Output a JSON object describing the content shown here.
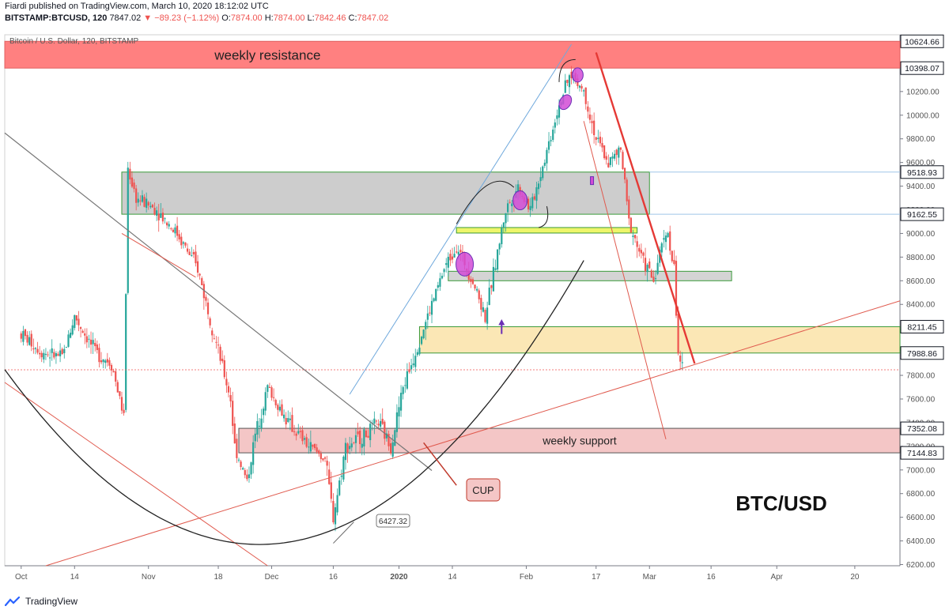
{
  "header": {
    "publisher_line": "Fiardi published on TradingView.com, March 10, 2020 18:12:02 UTC",
    "symbol": "BITSTAMP:BTCUSD, 120",
    "last": "7847.02",
    "change": "−89.23 (−1.12%)",
    "o_label": "O:",
    "o": "7874.00",
    "h_label": "H:",
    "h": "7874.00",
    "l_label": "L:",
    "l": "7842.46",
    "c_label": "C:",
    "c": "7847.02"
  },
  "legend_title": "Bitcoin / U.S. Dollar, 120, BITSTAMP",
  "footer": {
    "brand": "TradingView"
  },
  "colors": {
    "candle_up": "#26a69a",
    "candle_down": "#ef5350",
    "resistance_zone": "#ff8080",
    "support_zone": "#f4c6c6",
    "grey_zone": "#c8c8c8",
    "yellow_band": "#eef56a",
    "orange_zone": "#fbe7b5",
    "red_line": "#e53935",
    "trend_red": "#e05a4e",
    "blue_line": "#6fa8dc",
    "grey_line": "#777777",
    "label_green_bg": "#131722"
  },
  "chart_data": {
    "type": "candlestick",
    "title": "Bitcoin / U.S. Dollar, 120, BITSTAMP",
    "watermark": "BTC/USD",
    "y_axis": {
      "ticks": [
        "6200.00",
        "6400.00",
        "6600.00",
        "6800.00",
        "7000.00",
        "7200.00",
        "7400.00",
        "7600.00",
        "7800.00",
        "8000.00",
        "8200.00",
        "8400.00",
        "8600.00",
        "8800.00",
        "9000.00",
        "9200.00",
        "9400.00",
        "9600.00",
        "9800.00",
        "10000.00",
        "10200.00",
        "10400.00"
      ],
      "tick_values": [
        6200,
        6400,
        6600,
        6800,
        7000,
        7200,
        7400,
        7600,
        7800,
        8000,
        8200,
        8400,
        8600,
        8800,
        9000,
        9200,
        9400,
        9600,
        9800,
        10000,
        10200,
        10400
      ],
      "range": [
        6190,
        10680
      ]
    },
    "price_labels": [
      {
        "text": "10624.66",
        "value": 10624.66
      },
      {
        "text": "10398.07",
        "value": 10398.07
      },
      {
        "text": "9518.93",
        "value": 9518.93
      },
      {
        "text": "9162.55",
        "value": 9162.55
      },
      {
        "text": "8211.45",
        "value": 8211.45
      },
      {
        "text": "7988.86",
        "value": 7988.86
      },
      {
        "text": "7352.08",
        "value": 7352.08
      },
      {
        "text": "7144.83",
        "value": 7144.83
      }
    ],
    "x_axis": {
      "labels": [
        "Oct",
        "14",
        "Nov",
        "18",
        "Dec",
        "16",
        "2020",
        "14",
        "Feb",
        "17",
        "Mar",
        "16",
        "Apr",
        "20"
      ],
      "label_days": [
        0,
        13,
        31,
        48,
        61,
        76,
        92,
        105,
        123,
        140,
        153,
        168,
        184,
        203
      ]
    },
    "annotations": [
      {
        "text": "weekly resistance"
      },
      {
        "text": "weekly support"
      },
      {
        "text": "CUP"
      },
      {
        "text": "6427.32"
      }
    ],
    "zones": [
      {
        "name": "weekly resistance",
        "from": 10398.07,
        "to": 10624.66
      },
      {
        "name": "grey zone",
        "from": 9162.55,
        "to": 9518.93
      },
      {
        "name": "yellow band",
        "from": 9010,
        "to": 9050
      },
      {
        "name": "grey zone low",
        "from": 8600,
        "to": 8680
      },
      {
        "name": "orange zone",
        "from": 7988.86,
        "to": 8211.45
      },
      {
        "name": "weekly support",
        "from": 7144.83,
        "to": 7352.08
      }
    ],
    "series": [
      {
        "values": [
          [
            0,
            8150
          ],
          [
            5,
            8000
          ],
          [
            10,
            7950
          ],
          [
            13,
            8300
          ],
          [
            18,
            8000
          ],
          [
            22,
            7900
          ],
          [
            25,
            7450
          ],
          [
            26,
            9550
          ],
          [
            28,
            9300
          ],
          [
            33,
            9200
          ],
          [
            38,
            9000
          ],
          [
            43,
            8700
          ],
          [
            48,
            8000
          ],
          [
            51,
            7600
          ],
          [
            52,
            7200
          ],
          [
            55,
            6900
          ],
          [
            57,
            7300
          ],
          [
            60,
            7700
          ],
          [
            65,
            7400
          ],
          [
            70,
            7200
          ],
          [
            74,
            7100
          ],
          [
            76,
            6600
          ],
          [
            79,
            7200
          ],
          [
            84,
            7300
          ],
          [
            87,
            7400
          ],
          [
            90,
            7200
          ],
          [
            93,
            7700
          ],
          [
            96,
            8000
          ],
          [
            99,
            8300
          ],
          [
            103,
            8700
          ],
          [
            106,
            8900
          ],
          [
            110,
            8600
          ],
          [
            113,
            8300
          ],
          [
            118,
            9200
          ],
          [
            121,
            9400
          ],
          [
            124,
            9200
          ],
          [
            128,
            9700
          ],
          [
            131,
            10100
          ],
          [
            134,
            10350
          ],
          [
            137,
            10200
          ],
          [
            140,
            9800
          ],
          [
            143,
            9600
          ],
          [
            146,
            9700
          ],
          [
            148,
            9100
          ],
          [
            151,
            8800
          ],
          [
            154,
            8600
          ],
          [
            157,
            9050
          ],
          [
            159,
            8700
          ],
          [
            160,
            8000
          ],
          [
            161,
            7850
          ]
        ]
      }
    ]
  }
}
